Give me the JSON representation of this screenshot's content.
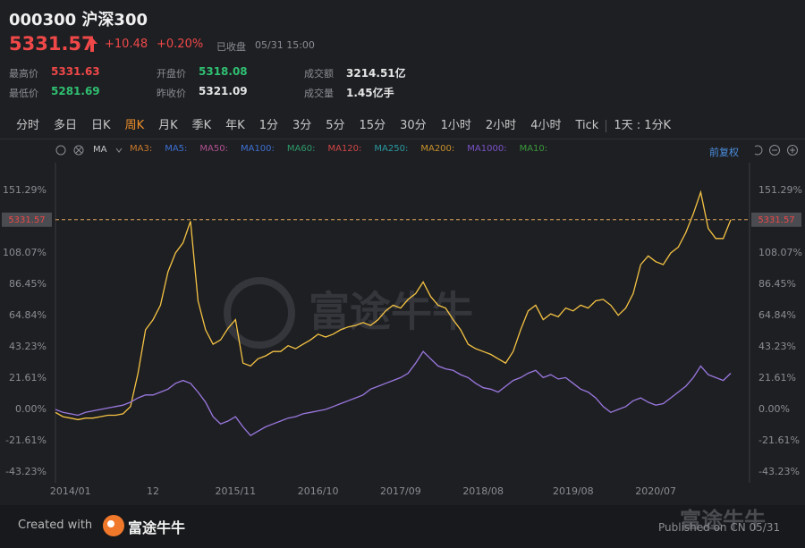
{
  "header": {
    "code": "000300",
    "name": "沪深300",
    "price": "5331.57",
    "change": "+10.48",
    "change_pct": "+0.20%",
    "status": "已收盘",
    "time": "05/31 15:00"
  },
  "stats": [
    {
      "label": "最高价",
      "value": "5331.63",
      "color": "#f04848"
    },
    {
      "label": "开盘价",
      "value": "5318.08",
      "color": "#2fbf71"
    },
    {
      "label": "成交额",
      "value": "3214.51亿",
      "color": "#e6e6e6"
    },
    {
      "label": "最低价",
      "value": "5281.69",
      "color": "#2fbf71"
    },
    {
      "label": "昨收价",
      "value": "5321.09",
      "color": "#e6e6e6"
    },
    {
      "label": "成交量",
      "value": "1.45亿手",
      "color": "#e6e6e6"
    }
  ],
  "tabs": {
    "items": [
      "分时",
      "多日",
      "日K",
      "周K",
      "月K",
      "季K",
      "年K",
      "1分",
      "3分",
      "5分",
      "15分",
      "30分",
      "1小时",
      "2小时",
      "4小时",
      "Tick"
    ],
    "active": 3,
    "extra": "1天 : 1分K"
  },
  "indicator_bar": {
    "selector": "MA",
    "items": [
      {
        "name": "MA3:",
        "color": "#c8782a"
      },
      {
        "name": "MA5:",
        "color": "#3d6fd1"
      },
      {
        "name": "MA50:",
        "color": "#b0508f"
      },
      {
        "name": "MA100:",
        "color": "#3d6fd1"
      },
      {
        "name": "MA60:",
        "color": "#2e9a6a"
      },
      {
        "name": "MA120:",
        "color": "#d04545"
      },
      {
        "name": "MA250:",
        "color": "#2a9aa0"
      },
      {
        "name": "MA200:",
        "color": "#c8902a"
      },
      {
        "name": "MA1000:",
        "color": "#7a52c8"
      },
      {
        "name": "MA10:",
        "color": "#3a9a3a"
      }
    ],
    "adjust": "前复权"
  },
  "watermark": "富途牛牛",
  "footer": {
    "created_with": "Created with",
    "brand": "富途牛牛",
    "published": "Published on CN 05/31"
  },
  "chart_data": {
    "type": "line",
    "x": [
      "2013/11",
      "2013/12",
      "2014/01",
      "2014/02",
      "2014/03",
      "2014/04",
      "2014/05",
      "2014/06",
      "2014/07",
      "2014/08",
      "2014/09",
      "2014/10",
      "2014/11",
      "2014/12",
      "2015/01",
      "2015/02",
      "2015/03",
      "2015/04",
      "2015/05",
      "2015/06",
      "2015/07",
      "2015/08",
      "2015/09",
      "2015/10",
      "2015/11",
      "2015/12",
      "2016/01",
      "2016/02",
      "2016/03",
      "2016/04",
      "2016/05",
      "2016/06",
      "2016/07",
      "2016/08",
      "2016/09",
      "2016/10",
      "2016/11",
      "2016/12",
      "2017/01",
      "2017/02",
      "2017/03",
      "2017/04",
      "2017/05",
      "2017/06",
      "2017/07",
      "2017/08",
      "2017/09",
      "2017/10",
      "2017/11",
      "2017/12",
      "2018/01",
      "2018/02",
      "2018/03",
      "2018/04",
      "2018/05",
      "2018/06",
      "2018/07",
      "2018/08",
      "2018/09",
      "2018/10",
      "2018/11",
      "2018/12",
      "2019/01",
      "2019/02",
      "2019/03",
      "2019/04",
      "2019/05",
      "2019/06",
      "2019/07",
      "2019/08",
      "2019/09",
      "2019/10",
      "2019/11",
      "2019/12",
      "2020/01",
      "2020/02",
      "2020/03",
      "2020/04",
      "2020/05",
      "2020/06",
      "2020/07",
      "2020/08",
      "2020/09",
      "2020/10",
      "2020/11",
      "2020/12",
      "2021/01",
      "2021/02",
      "2021/03",
      "2021/04",
      "2021/05"
    ],
    "series": [
      {
        "color": "#f5c343",
        "values": [
          -2,
          -5,
          -6,
          -7,
          -6,
          -6,
          -5,
          -4,
          -4,
          -3,
          2,
          25,
          55,
          62,
          72,
          95,
          108,
          115,
          130,
          75,
          55,
          45,
          48,
          56,
          62,
          32,
          30,
          35,
          37,
          40,
          40,
          44,
          42,
          45,
          48,
          52,
          50,
          52,
          55,
          57,
          58,
          60,
          58,
          62,
          68,
          72,
          70,
          76,
          80,
          88,
          78,
          72,
          70,
          62,
          55,
          45,
          42,
          40,
          38,
          35,
          32,
          40,
          55,
          68,
          72,
          62,
          66,
          64,
          70,
          68,
          72,
          70,
          75,
          76,
          72,
          65,
          70,
          80,
          100,
          106,
          102,
          100,
          108,
          112,
          122,
          135,
          150,
          125,
          118,
          118,
          131
        ]
      },
      {
        "color": "#9b78e0",
        "values": [
          0,
          -2,
          -3,
          -4,
          -2,
          -1,
          0,
          1,
          2,
          3,
          5,
          8,
          10,
          10,
          12,
          14,
          18,
          20,
          18,
          12,
          5,
          -5,
          -10,
          -8,
          -5,
          -12,
          -18,
          -15,
          -12,
          -10,
          -8,
          -6,
          -5,
          -3,
          -2,
          -1,
          0,
          2,
          4,
          6,
          8,
          10,
          14,
          16,
          18,
          20,
          22,
          25,
          32,
          40,
          35,
          30,
          28,
          27,
          24,
          22,
          18,
          15,
          14,
          12,
          16,
          20,
          22,
          25,
          27,
          22,
          24,
          21,
          22,
          18,
          14,
          12,
          8,
          2,
          -2,
          0,
          2,
          6,
          8,
          5,
          3,
          4,
          8,
          12,
          16,
          22,
          30,
          24,
          22,
          20,
          25
        ]
      }
    ],
    "ylim": [
      -50.6,
      168.5
    ],
    "yticks": [
      {
        "value": 151.29,
        "label": "151.29%"
      },
      {
        "value": 108.07,
        "label": "108.07%"
      },
      {
        "value": 86.45,
        "label": "86.45%"
      },
      {
        "value": 64.84,
        "label": "64.84%"
      },
      {
        "value": 43.23,
        "label": "43.23%"
      },
      {
        "value": 21.61,
        "label": "21.61%"
      },
      {
        "value": 0,
        "label": "0.00%"
      },
      {
        "value": -21.61,
        "label": "-21.61%"
      },
      {
        "value": -43.23,
        "label": "-43.23%"
      }
    ],
    "xticks": [
      "2014/01",
      {
        "value": "2014/12",
        "label": "12"
      },
      "2015/11",
      "2016/10",
      "2017/09",
      "2018/08",
      "2019/08",
      "2020/07"
    ],
    "reference_line": {
      "value": 131,
      "label": "5331.57"
    },
    "grid": false
  }
}
